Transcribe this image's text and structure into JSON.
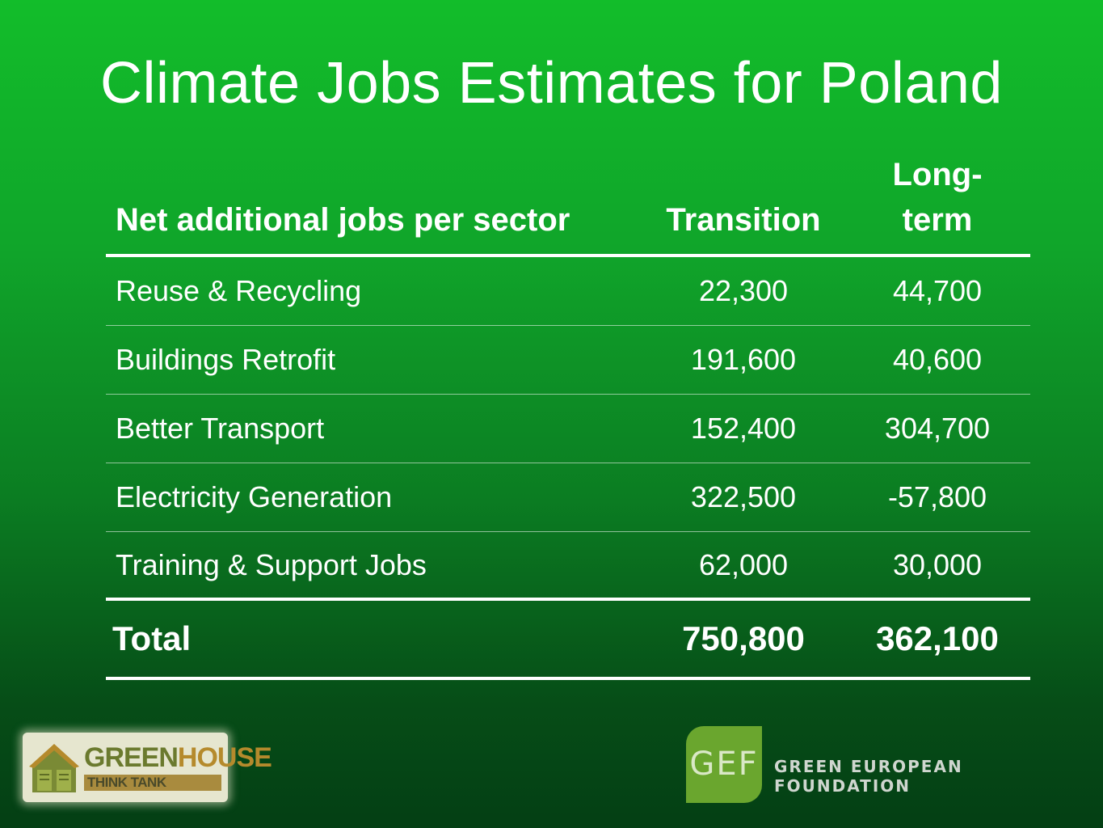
{
  "slide": {
    "title": "Climate Jobs Estimates for Poland"
  },
  "table": {
    "headers": {
      "sector": "Net additional jobs per sector",
      "transition": "Transition",
      "longterm_line1": "Long-",
      "longterm_line2": "term"
    },
    "rows": [
      {
        "sector": "Reuse & Recycling",
        "transition": "22,300",
        "longterm": "44,700"
      },
      {
        "sector": "Buildings Retrofit",
        "transition": "191,600",
        "longterm": "40,600"
      },
      {
        "sector": "Better Transport",
        "transition": "152,400",
        "longterm": "304,700"
      },
      {
        "sector": "Electricity Generation",
        "transition": "322,500",
        "longterm": "-57,800"
      },
      {
        "sector": "Training & Support Jobs",
        "transition": "62,000",
        "longterm": "30,000"
      }
    ],
    "total": {
      "label": "Total",
      "transition": "750,800",
      "longterm": "362,100"
    }
  },
  "logos": {
    "greenhouse": {
      "word1": "GREEN",
      "word2": "HOUSE",
      "subtitle": "THINK TANK"
    },
    "gef": {
      "mark": "GEF",
      "name": "GREEN EUROPEAN FOUNDATION",
      "color": "#6aa62e"
    }
  }
}
